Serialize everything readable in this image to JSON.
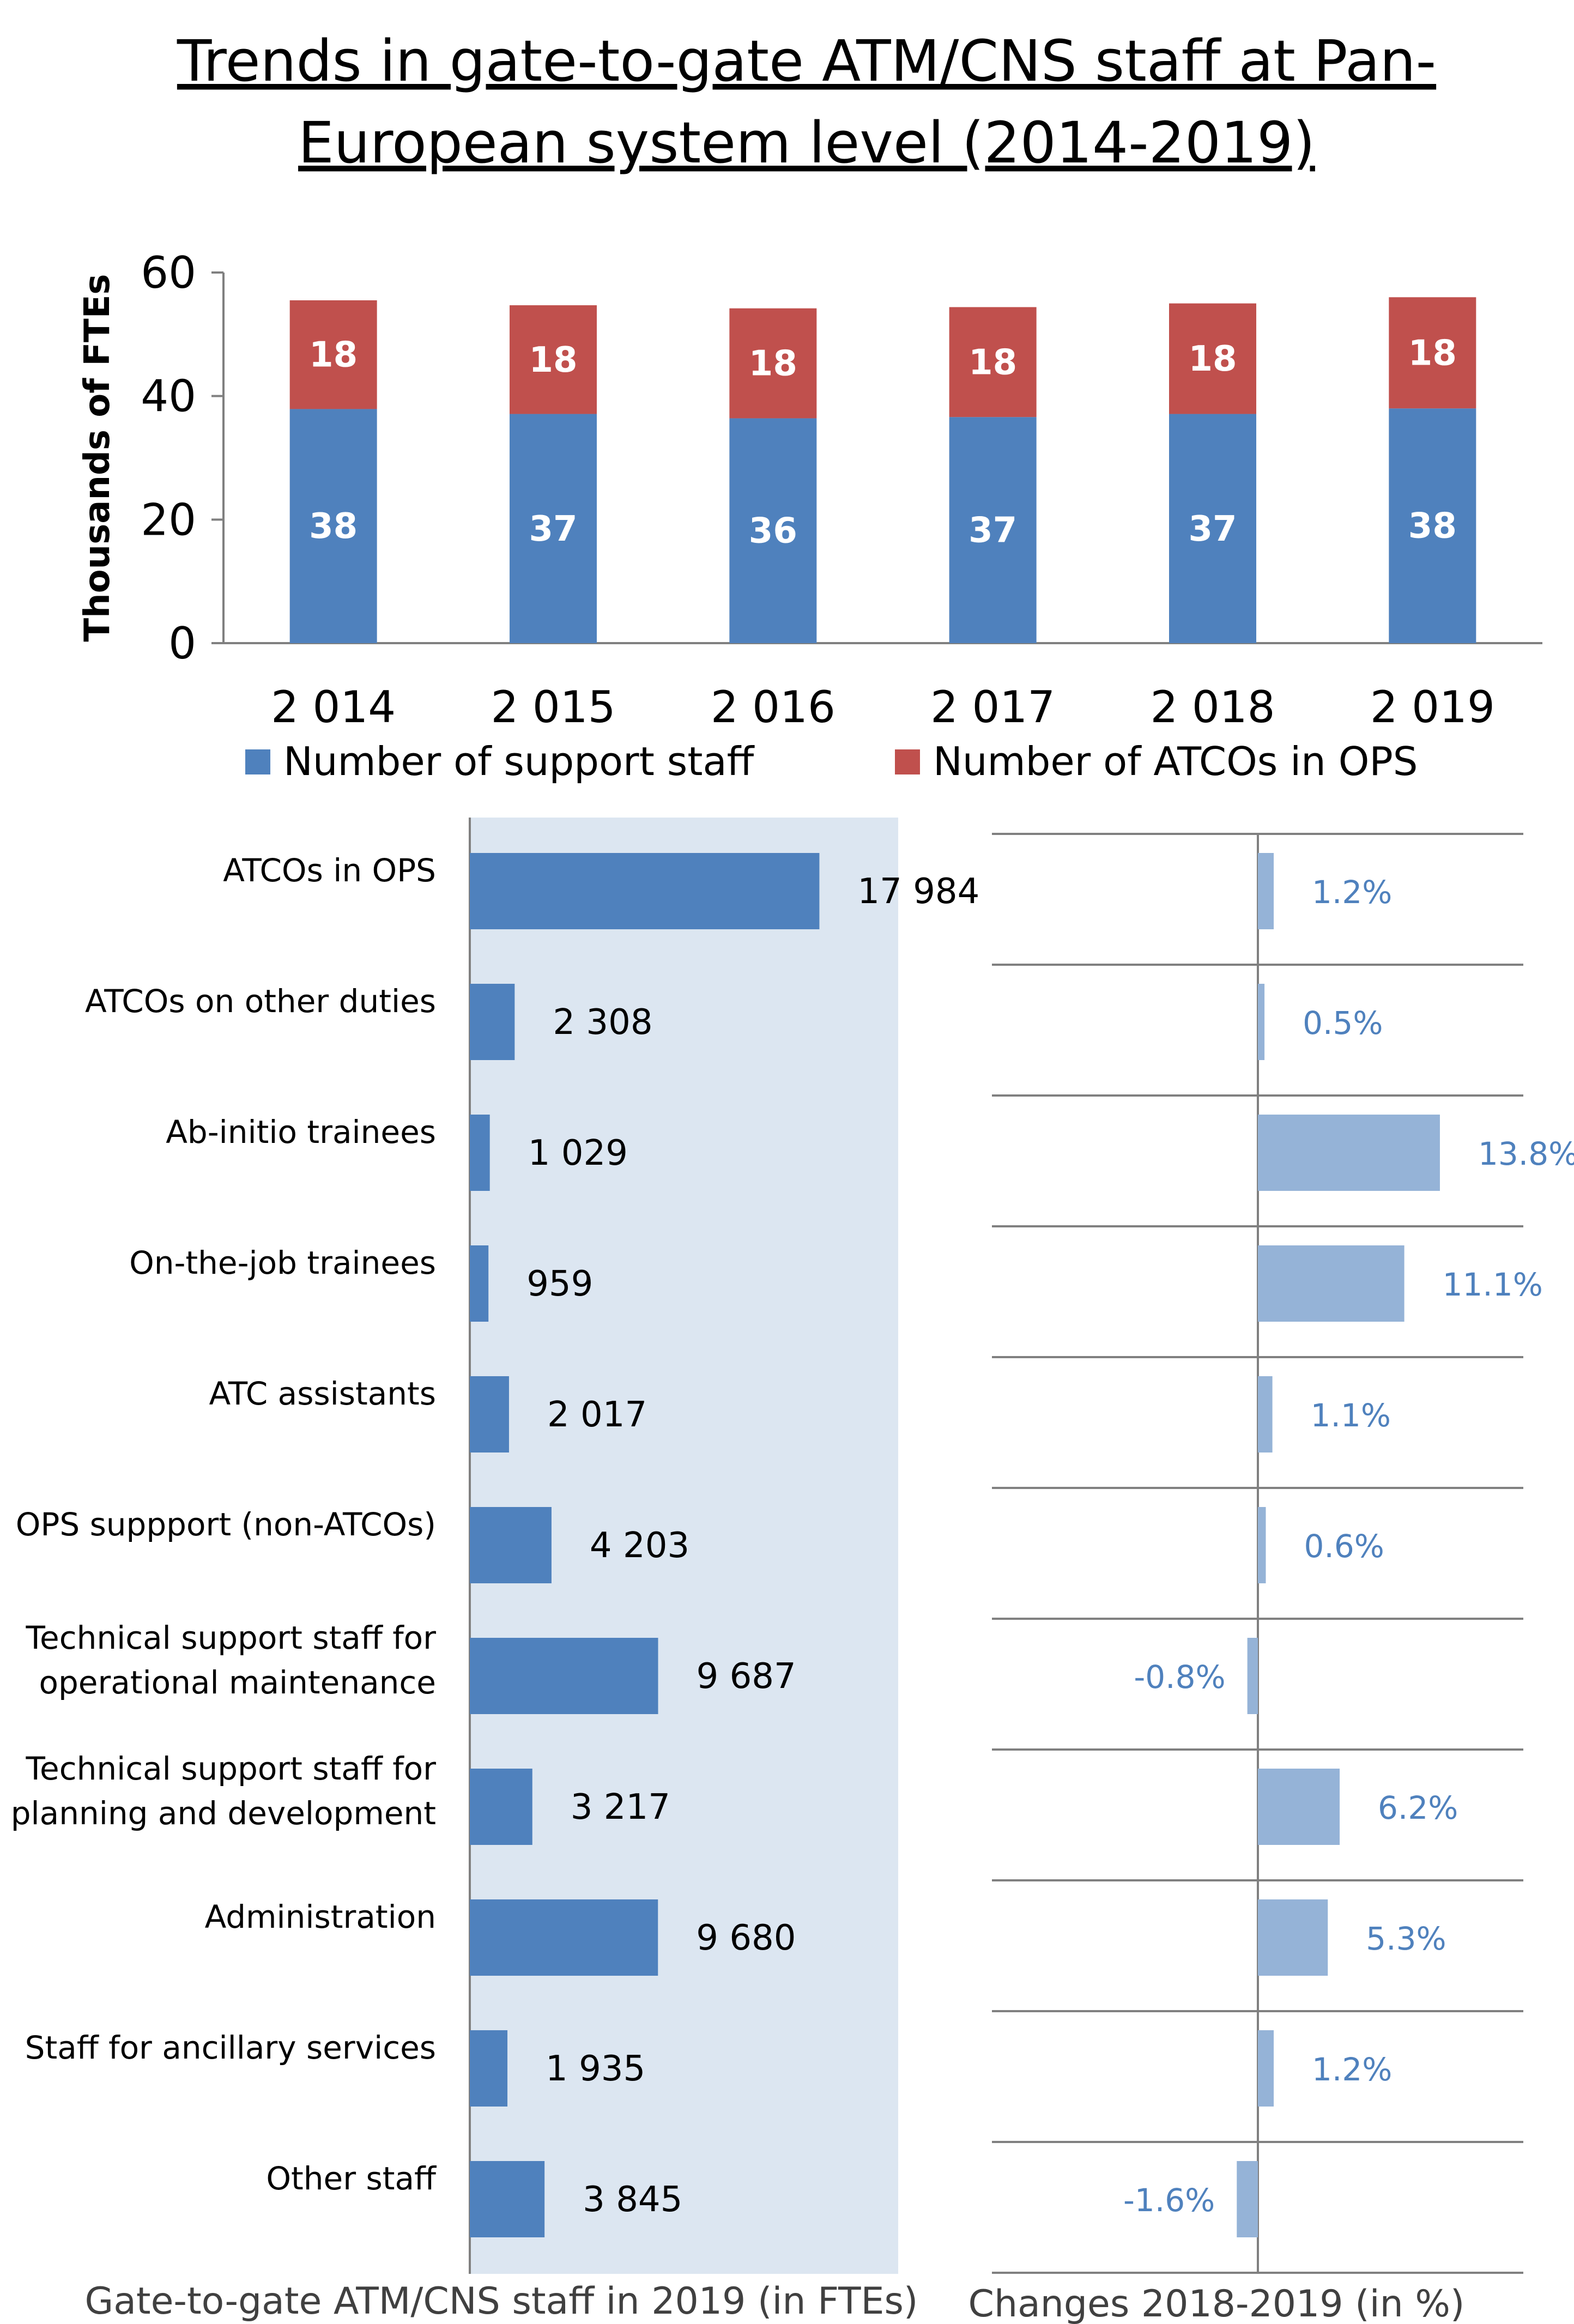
{
  "title_line1": "Trends in gate-to-gate ATM/CNS staff at Pan-",
  "title_line2": "European system level (2014-2019)",
  "colors": {
    "support": "#4f81bd",
    "atcos": "#c0504d",
    "bar": "#4f81bd",
    "change": "#95b3d7",
    "panel": "#dce6f1",
    "axis": "#808080"
  },
  "chart_data": [
    {
      "type": "bar",
      "stacked": true,
      "ylabel": "Thousands of FTEs",
      "ylim": [
        0,
        60
      ],
      "yticks": [
        0,
        20,
        40,
        60
      ],
      "categories": [
        "2 014",
        "2 015",
        "2 016",
        "2 017",
        "2 018",
        "2 019"
      ],
      "series": [
        {
          "name": "Number of support staff",
          "values": [
            38,
            37,
            36,
            37,
            37,
            38
          ],
          "exact": [
            37.9,
            37.1,
            36.4,
            36.6,
            37.1,
            38.0
          ]
        },
        {
          "name": "Number of ATCOs in OPS",
          "values": [
            18,
            18,
            18,
            18,
            18,
            18
          ],
          "exact": [
            17.6,
            17.6,
            17.8,
            17.8,
            17.9,
            18.0
          ]
        }
      ],
      "legend": "bottom"
    },
    {
      "type": "bar",
      "orientation": "horizontal",
      "caption": "Gate-to-gate ATM/CNS staff in 2019 (in FTEs)",
      "categories": [
        [
          "ATCOs in OPS"
        ],
        [
          "ATCOs on other duties"
        ],
        [
          "Ab-initio trainees"
        ],
        [
          "On-the-job trainees"
        ],
        [
          "ATC assistants"
        ],
        [
          "OPS suppport (non-ATCOs)"
        ],
        [
          "Technical support staff for",
          "operational maintenance"
        ],
        [
          "Technical support staff for",
          "planning and development"
        ],
        [
          "Administration"
        ],
        [
          "Staff for ancillary services"
        ],
        [
          "Other staff"
        ]
      ],
      "values": [
        17984,
        2308,
        1029,
        959,
        2017,
        4203,
        9687,
        3217,
        9680,
        1935,
        3845
      ],
      "labels": [
        "17 984",
        "2 308",
        "1 029",
        "959",
        "2 017",
        "4 203",
        "9 687",
        "3 217",
        "9 680",
        "1 935",
        "3 845"
      ]
    },
    {
      "type": "bar",
      "orientation": "horizontal",
      "caption": "Changes 2018-2019 (in %)",
      "values": [
        1.2,
        0.5,
        13.8,
        11.1,
        1.1,
        0.6,
        -0.8,
        6.2,
        5.3,
        1.2,
        -1.6
      ],
      "labels": [
        "1.2%",
        "0.5%",
        "13.8%",
        "11.1%",
        "1.1%",
        "0.6%",
        "-0.8%",
        "6.2%",
        "5.3%",
        "1.2%",
        "-1.6%"
      ]
    }
  ]
}
